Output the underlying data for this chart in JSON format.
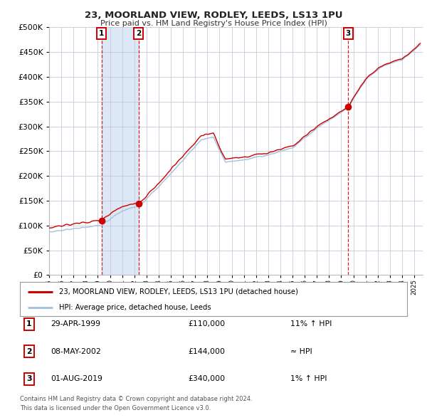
{
  "title": "23, MOORLAND VIEW, RODLEY, LEEDS, LS13 1PU",
  "subtitle": "Price paid vs. HM Land Registry's House Price Index (HPI)",
  "legend_line1": "23, MOORLAND VIEW, RODLEY, LEEDS, LS13 1PU (detached house)",
  "legend_line2": "HPI: Average price, detached house, Leeds",
  "sale1_date": "29-APR-1999",
  "sale1_price": 110000,
  "sale1_note": "11% ↑ HPI",
  "sale2_date": "08-MAY-2002",
  "sale2_price": 144000,
  "sale2_note": "≈ HPI",
  "sale3_date": "01-AUG-2019",
  "sale3_price": 340000,
  "sale3_note": "1% ↑ HPI",
  "footer1": "Contains HM Land Registry data © Crown copyright and database right 2024.",
  "footer2": "This data is licensed under the Open Government Licence v3.0.",
  "ylim": [
    0,
    500000
  ],
  "yticks": [
    0,
    50000,
    100000,
    150000,
    200000,
    250000,
    300000,
    350000,
    400000,
    450000,
    500000
  ],
  "sale1_year": 1999.32,
  "sale2_year": 2002.36,
  "sale3_year": 2019.58,
  "hpi_color": "#a8c4e0",
  "property_color": "#cc0000",
  "bg_color": "#ffffff",
  "plot_bg": "#ffffff",
  "grid_color": "#c8c8d8",
  "highlight_color": "#dce8f5",
  "marker_color": "#cc0000",
  "dashed_color": "#cc0000",
  "label_color": "#cc0000"
}
